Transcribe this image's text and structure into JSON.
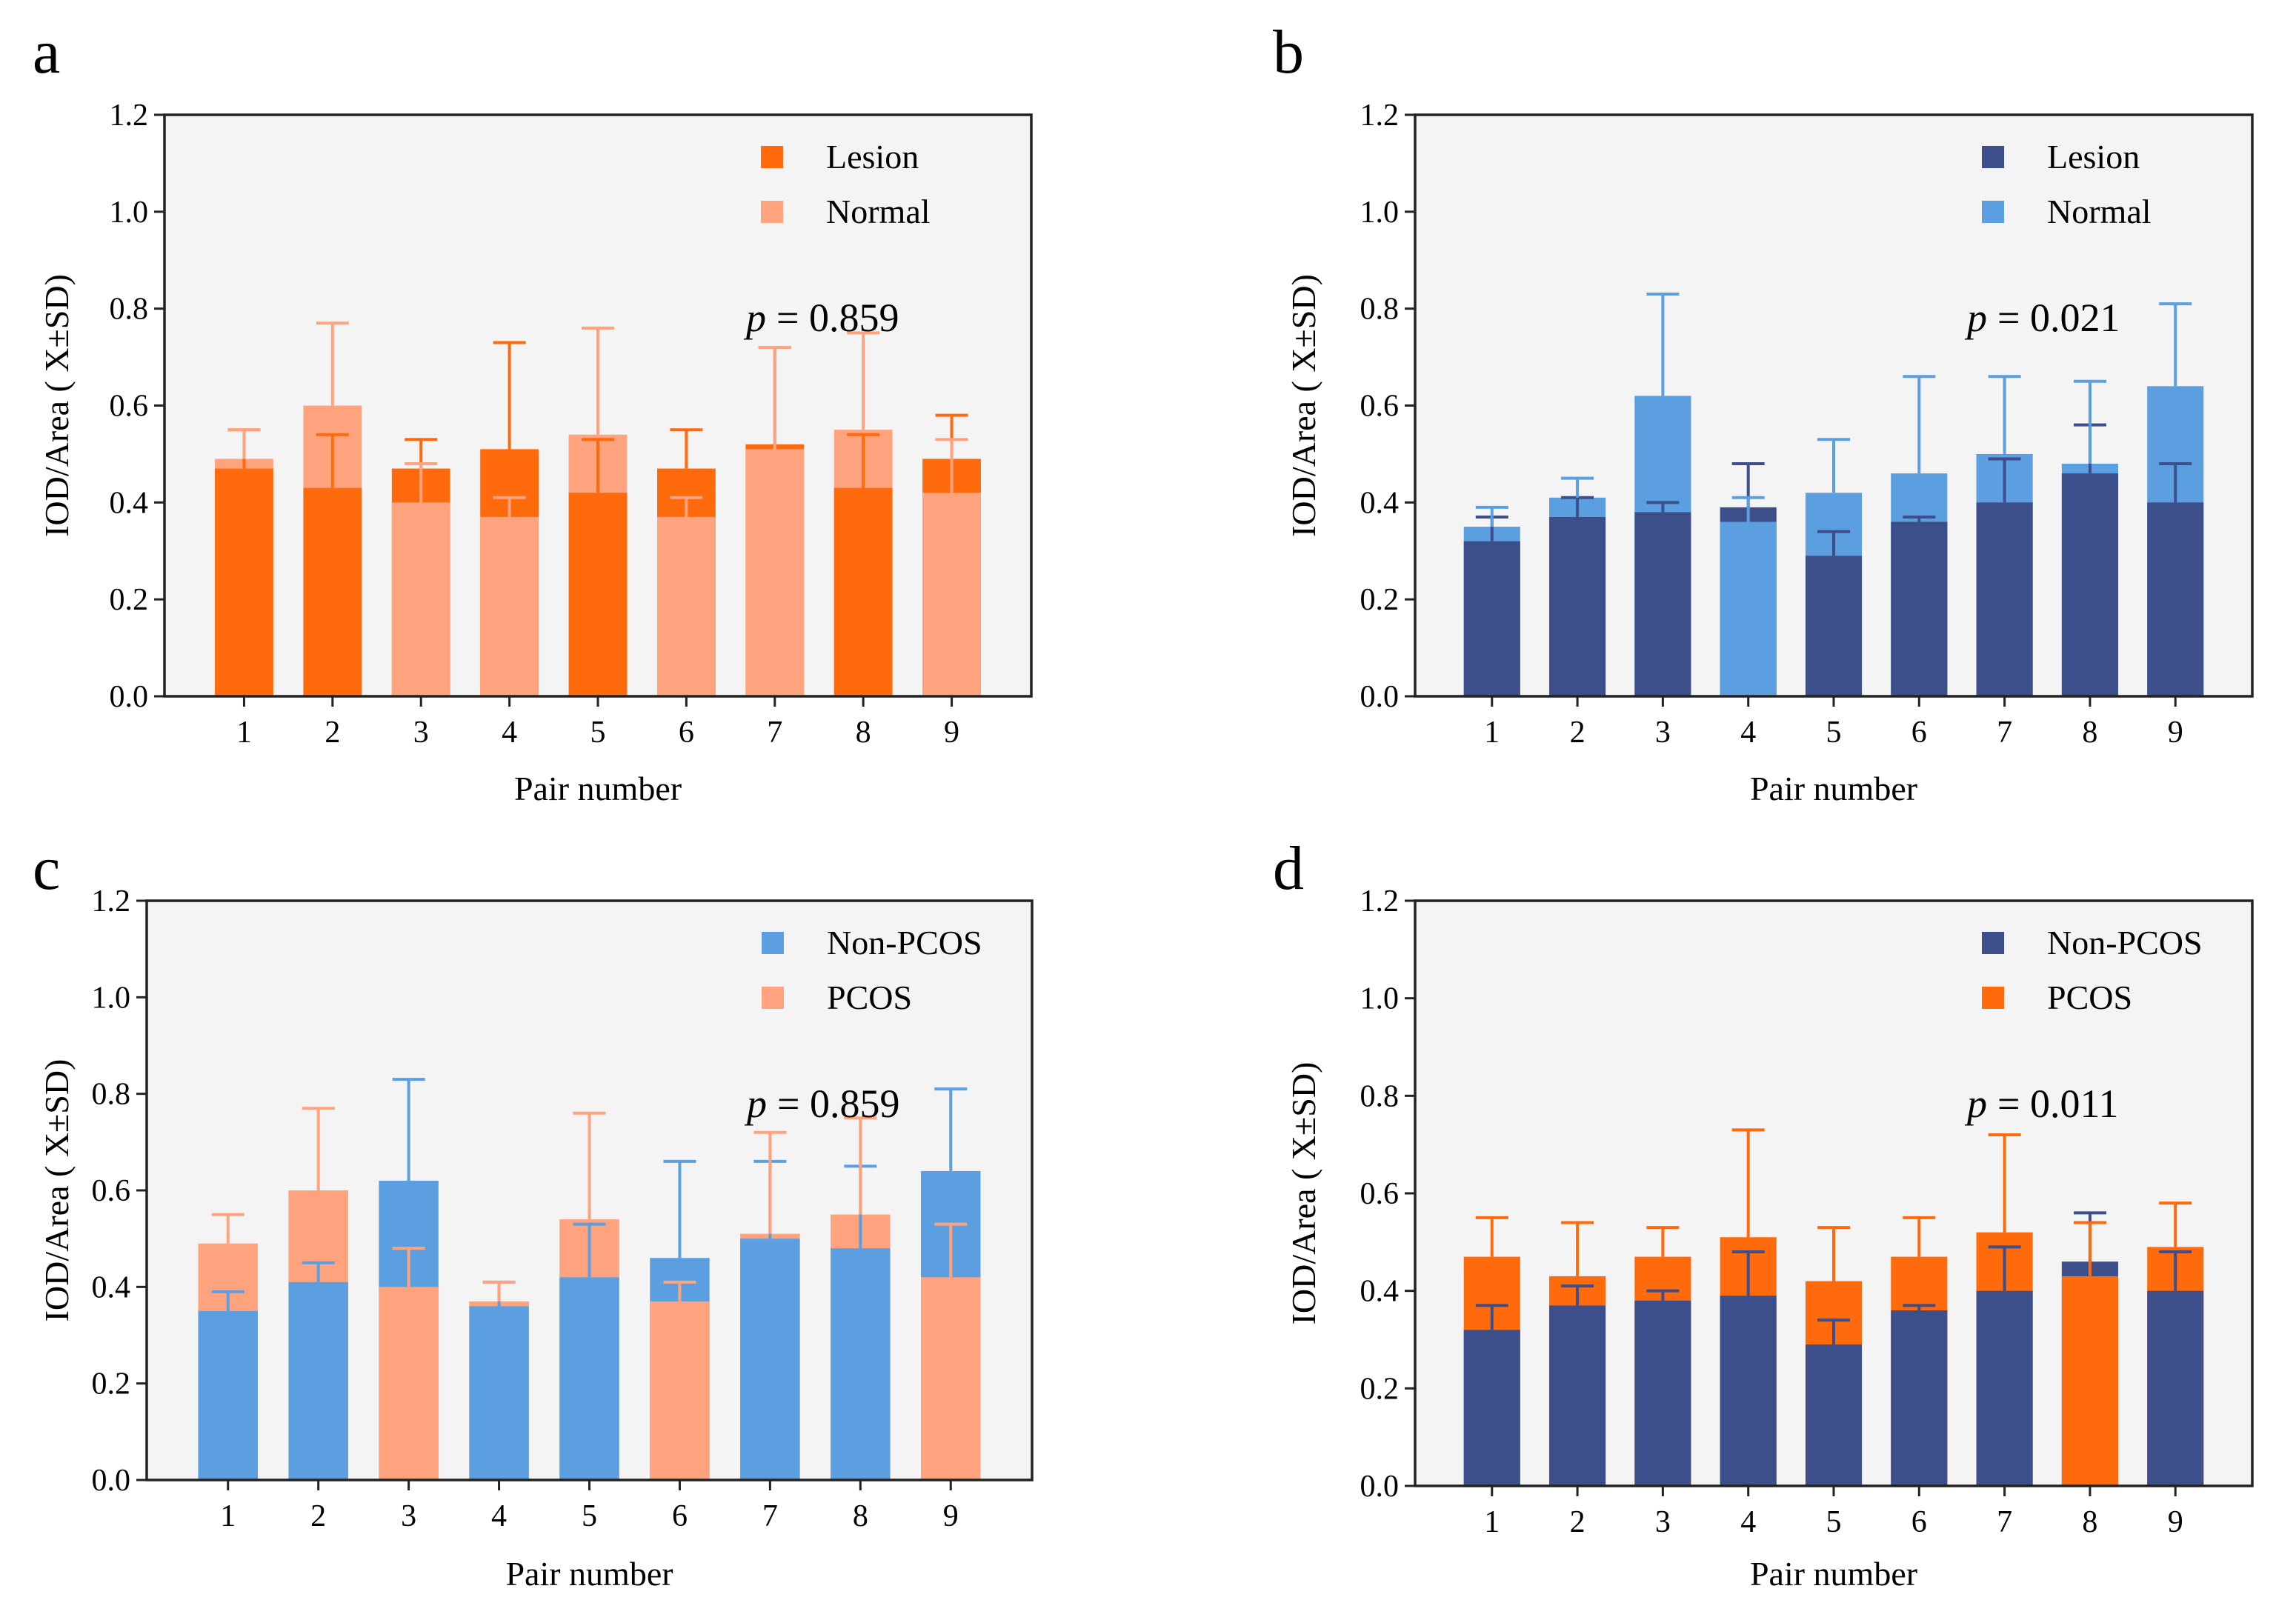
{
  "figure": {
    "background": "#ffffff",
    "plot_background": "#f4f4f4"
  },
  "chart_data": [
    {
      "panel": "a",
      "type": "bar",
      "overlay": true,
      "categories": [
        "1",
        "2",
        "3",
        "4",
        "5",
        "6",
        "7",
        "8",
        "9"
      ],
      "xlabel": "Pair number",
      "ylabel": "IOD/Area ( X±SD)",
      "ylim": [
        0,
        1.2
      ],
      "yticks": [
        "0.0",
        "0.2",
        "0.4",
        "0.6",
        "0.8",
        "1.0",
        "1.2"
      ],
      "legend_position": "top-right",
      "p_label": "p",
      "p_value": "= 0.859",
      "series": [
        {
          "name": "Lesion",
          "color": "#ff6a0d",
          "values": [
            0.47,
            0.43,
            0.47,
            0.51,
            0.42,
            0.47,
            0.52,
            0.43,
            0.49
          ],
          "errors": [
            0.08,
            0.11,
            0.06,
            0.22,
            0.11,
            0.08,
            0.2,
            0.11,
            0.09
          ]
        },
        {
          "name": "Normal",
          "color": "#ffa37e",
          "values": [
            0.49,
            0.6,
            0.4,
            0.37,
            0.54,
            0.37,
            0.51,
            0.55,
            0.42
          ],
          "errors": [
            0.06,
            0.17,
            0.08,
            0.04,
            0.22,
            0.04,
            0.21,
            0.2,
            0.11
          ]
        }
      ]
    },
    {
      "panel": "b",
      "type": "bar",
      "overlay": true,
      "categories": [
        "1",
        "2",
        "3",
        "4",
        "5",
        "6",
        "7",
        "8",
        "9"
      ],
      "xlabel": "Pair number",
      "ylabel": "IOD/Area ( X±SD)",
      "ylim": [
        0,
        1.2
      ],
      "yticks": [
        "0.0",
        "0.2",
        "0.4",
        "0.6",
        "0.8",
        "1.0",
        "1.2"
      ],
      "legend_position": "top-right",
      "p_label": "p",
      "p_value": "= 0.021",
      "series": [
        {
          "name": "Lesion",
          "color": "#3d4f8a",
          "values": [
            0.32,
            0.37,
            0.38,
            0.39,
            0.29,
            0.36,
            0.4,
            0.46,
            0.4
          ],
          "errors": [
            0.05,
            0.04,
            0.02,
            0.09,
            0.05,
            0.01,
            0.09,
            0.1,
            0.08
          ]
        },
        {
          "name": "Normal",
          "color": "#5b9fe0",
          "values": [
            0.35,
            0.41,
            0.62,
            0.36,
            0.42,
            0.46,
            0.5,
            0.48,
            0.64
          ],
          "errors": [
            0.04,
            0.04,
            0.21,
            0.05,
            0.11,
            0.2,
            0.16,
            0.17,
            0.17
          ]
        }
      ]
    },
    {
      "panel": "c",
      "type": "bar",
      "overlay": true,
      "categories": [
        "1",
        "2",
        "3",
        "4",
        "5",
        "6",
        "7",
        "8",
        "9"
      ],
      "xlabel": "Pair number",
      "ylabel": "IOD/Area ( X±SD)",
      "ylim": [
        0,
        1.2
      ],
      "yticks": [
        "0.0",
        "0.2",
        "0.4",
        "0.6",
        "0.8",
        "1.0",
        "1.2"
      ],
      "legend_position": "top-right",
      "p_label": "p",
      "p_value": "= 0.859",
      "series": [
        {
          "name": "Non-PCOS",
          "color": "#5b9fe0",
          "values": [
            0.35,
            0.41,
            0.62,
            0.36,
            0.42,
            0.46,
            0.5,
            0.48,
            0.64
          ],
          "errors": [
            0.04,
            0.04,
            0.21,
            0.05,
            0.11,
            0.2,
            0.16,
            0.17,
            0.17
          ]
        },
        {
          "name": "PCOS",
          "color": "#ffa37e",
          "values": [
            0.49,
            0.6,
            0.4,
            0.37,
            0.54,
            0.37,
            0.51,
            0.55,
            0.42
          ],
          "errors": [
            0.06,
            0.17,
            0.08,
            0.04,
            0.22,
            0.04,
            0.21,
            0.2,
            0.11
          ]
        }
      ]
    },
    {
      "panel": "d",
      "type": "bar",
      "overlay": true,
      "categories": [
        "1",
        "2",
        "3",
        "4",
        "5",
        "6",
        "7",
        "8",
        "9"
      ],
      "xlabel": "Pair number",
      "ylabel": "IOD/Area ( X±SD)",
      "ylim": [
        0,
        1.2
      ],
      "yticks": [
        "0.0",
        "0.2",
        "0.4",
        "0.6",
        "0.8",
        "1.0",
        "1.2"
      ],
      "legend_position": "top-right",
      "p_label": "p",
      "p_value": "= 0.011",
      "series": [
        {
          "name": "Non-PCOS",
          "color": "#3d4f8a",
          "values": [
            0.32,
            0.37,
            0.38,
            0.39,
            0.29,
            0.36,
            0.4,
            0.46,
            0.4
          ],
          "errors": [
            0.05,
            0.04,
            0.02,
            0.09,
            0.05,
            0.01,
            0.09,
            0.1,
            0.08
          ]
        },
        {
          "name": "PCOS",
          "color": "#ff6a0d",
          "values": [
            0.47,
            0.43,
            0.47,
            0.51,
            0.42,
            0.47,
            0.52,
            0.43,
            0.49
          ],
          "errors": [
            0.08,
            0.11,
            0.06,
            0.22,
            0.11,
            0.08,
            0.2,
            0.11,
            0.09
          ]
        }
      ]
    }
  ]
}
